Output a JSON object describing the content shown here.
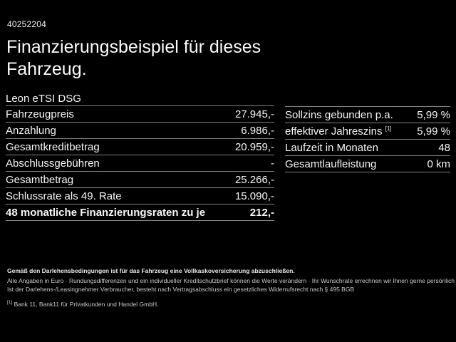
{
  "page": {
    "vehicle_id": "40252204",
    "title": "Finanzierungsbeispiel für dieses Fahrzeug."
  },
  "finance_table": {
    "header": "Leon eTSI DSG",
    "rows": [
      {
        "label": "Fahrzeugpreis",
        "value": "27.945,-"
      },
      {
        "label": "Anzahlung",
        "value": "6.986,-"
      },
      {
        "label": "Gesamtkreditbetrag",
        "value": "20.959,-"
      },
      {
        "label": "Abschlussgebühren",
        "value": "-"
      },
      {
        "label": "Gesamtbetrag",
        "value": "25.266,-"
      },
      {
        "label": "Schlussrate als 49. Rate",
        "value": "15.090,-"
      },
      {
        "label": "48 monatliche Finanzierungsraten zu je",
        "value": "212,-"
      }
    ]
  },
  "conditions_table": {
    "rows": [
      {
        "label": "Sollzins gebunden p.a.",
        "sup": "",
        "value": "5,99 %"
      },
      {
        "label": "effektiver Jahreszins ",
        "sup": "[1]",
        "value": "5,99 %"
      },
      {
        "label": "Laufzeit in Monaten",
        "sup": "",
        "value": "48"
      },
      {
        "label": "Gesamtlaufleistung",
        "sup": "",
        "value": "0 km"
      }
    ]
  },
  "footer": {
    "line1": "Gemäß den Darlehensbedingungen ist für das Fahrzeug eine Vollkaskoversicherung abzuschließen.",
    "line2": "Alle Angaben in Euro · Rundungsdifferenzen und ein individueller Kreditschutzbrief können die Werte verändern · Ihr Wunschrate errechnen wir Ihnen gerne persönlich",
    "line3": "Ist der Darlehens-/Leasingnehmer Verbraucher, besteht nach Vertragsabschluss ein gesetzliches Widerrufsrecht nach § 495 BGB",
    "footnote_marker": "[1]",
    "footnote_text": " Bank 11, Bank11 für Privatkunden und Handel GmbH."
  },
  "colors": {
    "background": "#000000",
    "text": "#f5f5f5",
    "divider": "#828282"
  }
}
